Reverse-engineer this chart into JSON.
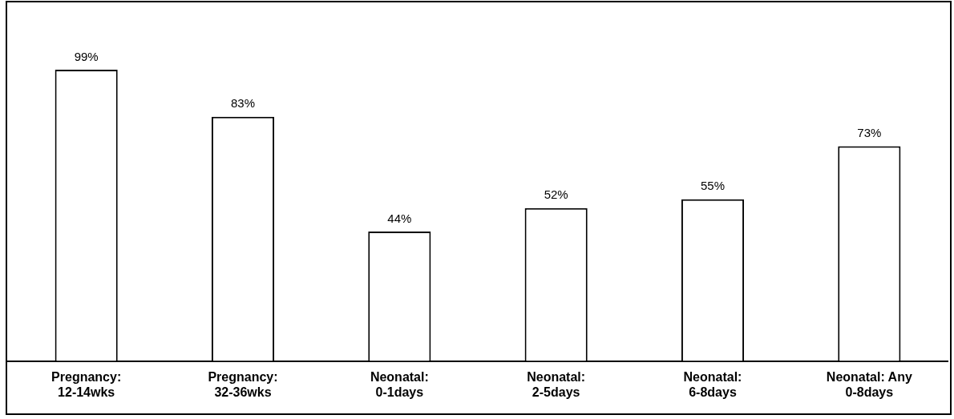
{
  "chart_data": {
    "type": "bar",
    "categories": [
      "Pregnancy: 12-14wks",
      "Pregnancy: 32-36wks",
      "Neonatal: 0-1days",
      "Neonatal: 2-5days",
      "Neonatal: 6-8days",
      "Neonatal: Any 0-8days"
    ],
    "values": [
      99,
      83,
      44,
      52,
      55,
      73
    ],
    "color": "#ffffff",
    "data_labels": true,
    "value_labels": [
      "99%",
      "83%",
      "44%",
      "52%",
      "55%",
      "73%"
    ],
    "grid": false,
    "legend": false
  }
}
